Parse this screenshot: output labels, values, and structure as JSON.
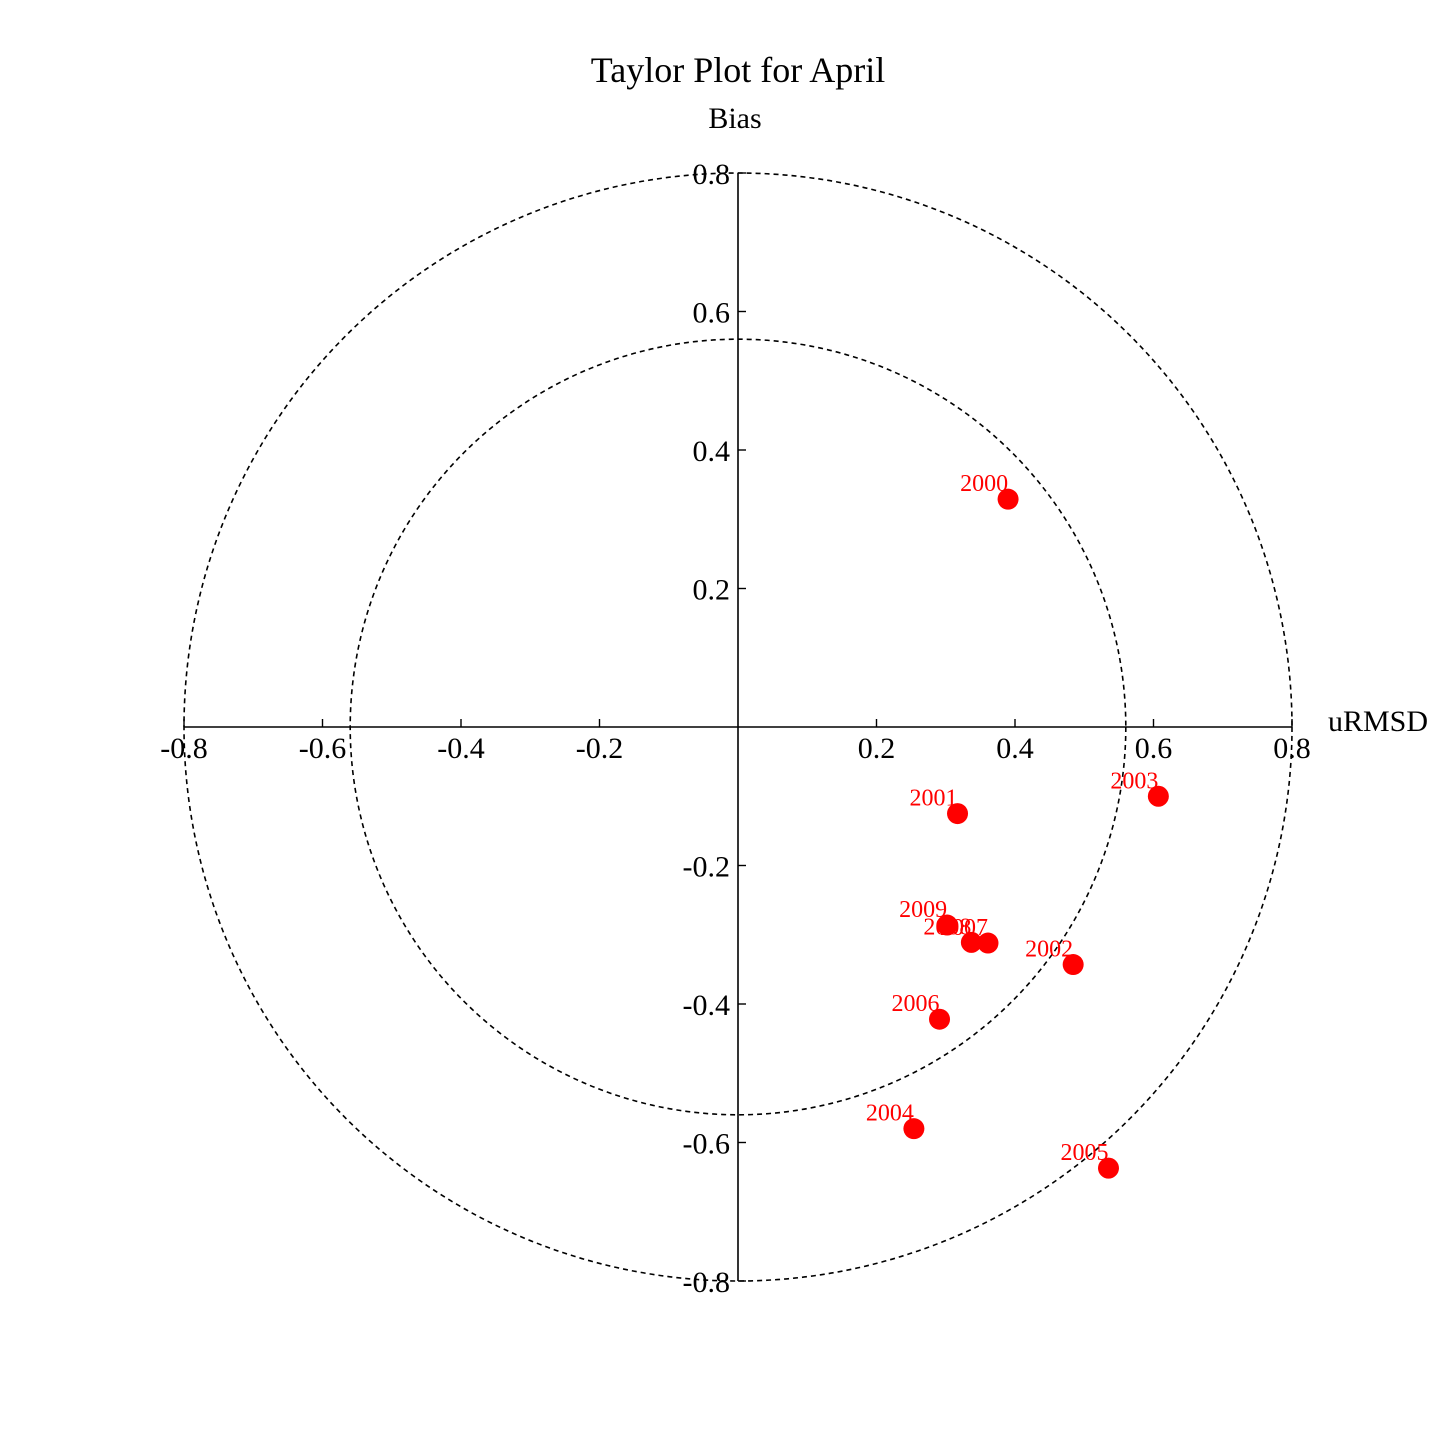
{
  "chart_data": {
    "type": "scatter",
    "title": "Taylor Plot for April",
    "xlabel": "uRMSD",
    "ylabel": "Bias",
    "xlim": [
      -0.8,
      0.8
    ],
    "ylim": [
      -0.8,
      0.8
    ],
    "x_ticks": [
      -0.8,
      -0.6,
      -0.4,
      -0.2,
      0.2,
      0.4,
      0.6,
      0.8
    ],
    "y_ticks": [
      0.8,
      0.6,
      0.4,
      0.2,
      -0.2,
      -0.4,
      -0.6,
      -0.8
    ],
    "x_tick_labels": [
      "-0.8",
      "-0.6",
      "-0.4",
      "-0.2",
      "0.2",
      "0.4",
      "0.6",
      "0.8"
    ],
    "y_tick_labels": [
      "0.8",
      "0.6",
      "0.4",
      "0.2",
      "-0.2",
      "-0.4",
      "-0.6",
      "-0.8"
    ],
    "reference_circles": [
      0.56,
      0.8
    ],
    "marker_color": "#ff0000",
    "label_color": "#ff0000",
    "points": [
      {
        "label": "2000",
        "x": 0.39,
        "y": 0.329
      },
      {
        "label": "2001",
        "x": 0.317,
        "y": -0.125
      },
      {
        "label": "2002",
        "x": 0.484,
        "y": -0.343
      },
      {
        "label": "2003",
        "x": 0.607,
        "y": -0.1
      },
      {
        "label": "2004",
        "x": 0.254,
        "y": -0.58
      },
      {
        "label": "2005",
        "x": 0.535,
        "y": -0.637
      },
      {
        "label": "2006",
        "x": 0.291,
        "y": -0.422
      },
      {
        "label": "2007",
        "x": 0.361,
        "y": -0.312
      },
      {
        "label": "2008",
        "x": 0.337,
        "y": -0.311
      },
      {
        "label": "2009",
        "x": 0.302,
        "y": -0.286
      }
    ]
  }
}
